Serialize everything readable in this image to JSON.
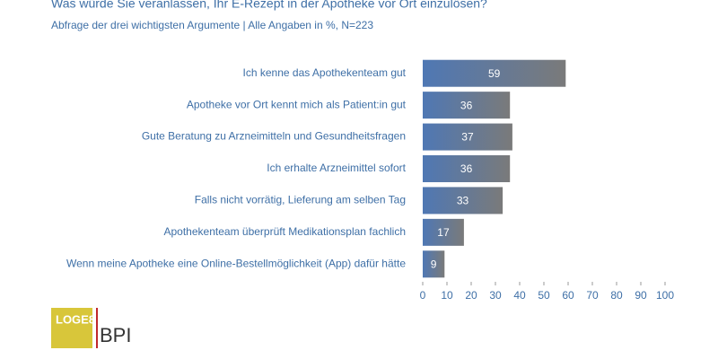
{
  "chart_data": {
    "type": "barh",
    "title": "Was würde Sie veranlassen, Ihr E-Rezept in der Apotheke vor Ort einzulösen?",
    "subtitle": "Abfrage der drei wichtigsten Argumente | Alle Angaben in %, N=223",
    "categories": [
      "Ich kenne das Apothekenteam gut",
      "Apotheke vor Ort kennt mich als Patient:in gut",
      "Gute Beratung zu Arzneimitteln und Gesundheitsfragen",
      "Ich erhalte Arzneimittel sofort",
      "Falls nicht vorrätig, Lieferung am selben Tag",
      "Apothekenteam überprüft Medikationsplan fachlich",
      "Wenn meine Apotheke eine Online-Bestellmöglichkeit (App) dafür hätte"
    ],
    "values": [
      59,
      36,
      37,
      36,
      33,
      17,
      9
    ],
    "color": "#4f78b4",
    "xlim": [
      0,
      100
    ],
    "xticks": [
      0,
      10,
      20,
      30,
      40,
      50,
      60,
      70,
      80,
      90,
      100
    ]
  },
  "logos": [
    "LOGE8",
    "BPI"
  ]
}
